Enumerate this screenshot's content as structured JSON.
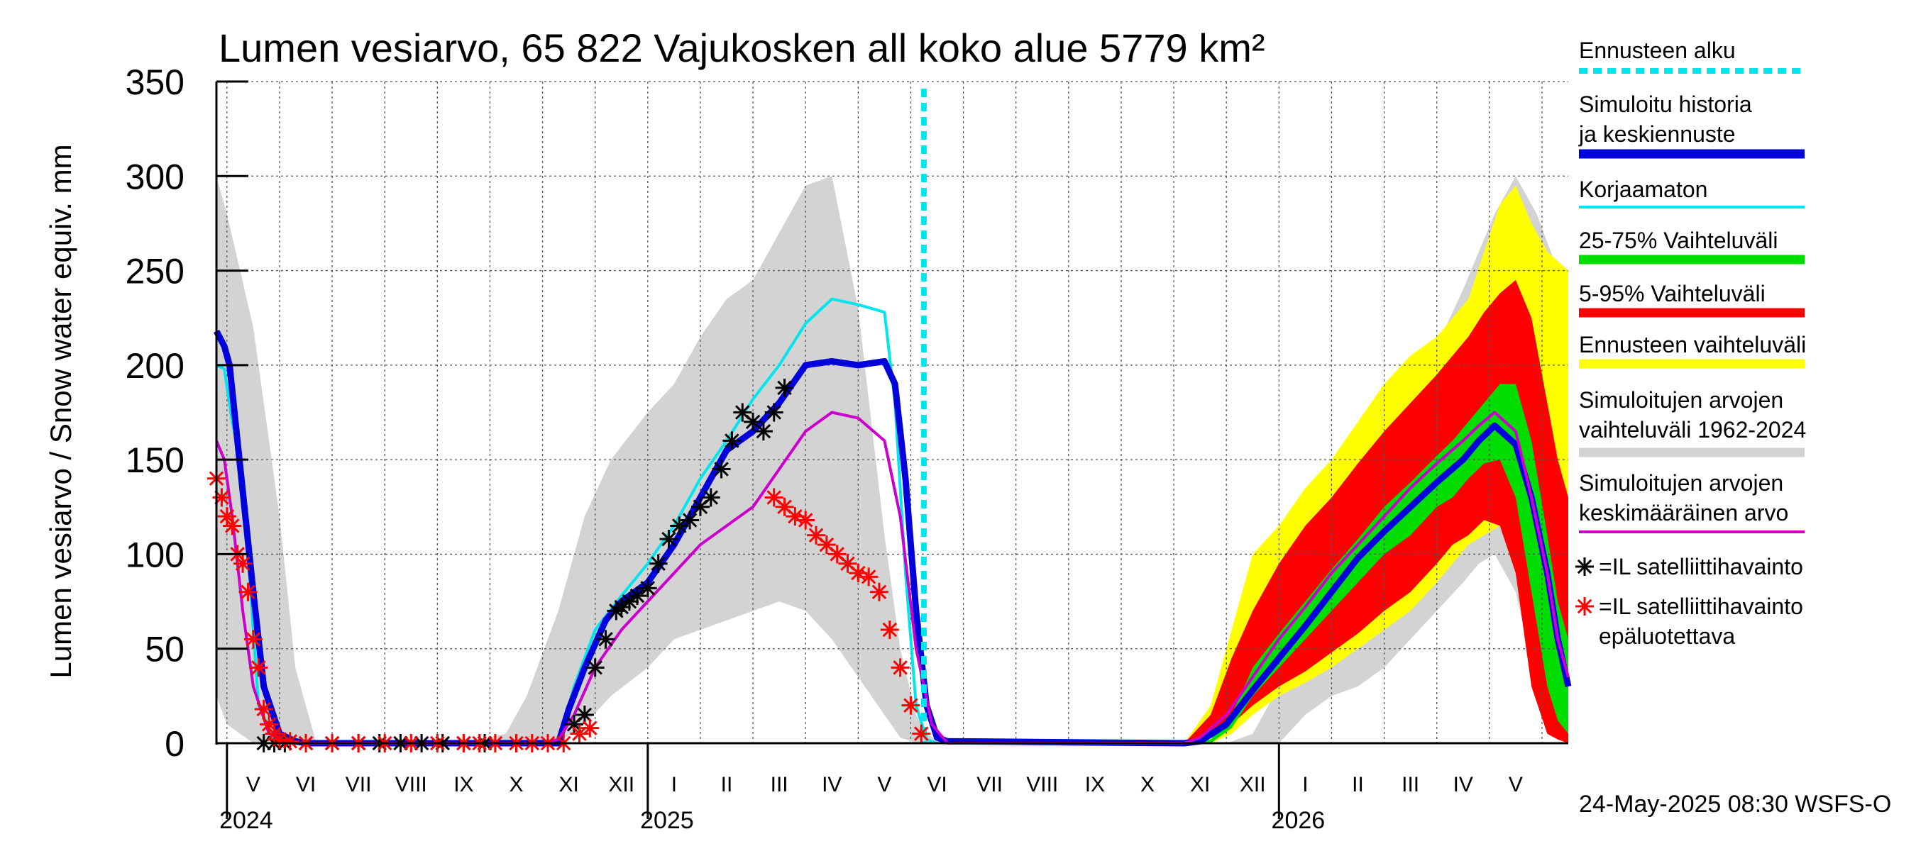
{
  "chart_data": {
    "type": "area",
    "title": "Lumen vesiarvo, 65 822 Vajukosken all koko alue 5779 km²",
    "ylabel": "Lumen vesiarvo / Snow water equiv.    mm",
    "ylim": [
      0,
      350
    ],
    "yticks": [
      0,
      50,
      100,
      150,
      200,
      250,
      300,
      350
    ],
    "grid": true,
    "x_unit": "months since 2024-05-01",
    "xlim": [
      -0.7,
      25.0
    ],
    "month_labels": [
      "V",
      "VI",
      "VII",
      "VIII",
      "IX",
      "X",
      "XI",
      "XII",
      "I",
      "II",
      "III",
      "IV",
      "V",
      "VI",
      "VII",
      "VIII",
      "IX",
      "X",
      "XI",
      "XII",
      "I",
      "II",
      "III",
      "IV",
      "V"
    ],
    "year_labels": [
      {
        "label": "2024",
        "x": 0
      },
      {
        "label": "2025",
        "x": 8
      },
      {
        "label": "2026",
        "x": 20
      }
    ],
    "forecast_start_x": 12.75,
    "footer": "24-May-2025 08:30 WSFS-O",
    "legend": {
      "placement": "right",
      "items": [
        {
          "label": "Ennusteen alku",
          "style": "dotted",
          "color": "#00e5ee"
        },
        {
          "label": "Simuloitu historia ja keskiennuste",
          "style": "thick",
          "color": "#0000dd"
        },
        {
          "label": "Korjaamaton",
          "style": "line",
          "color": "#00e5ee"
        },
        {
          "label": "25-75% Vaihteluväli",
          "style": "thick",
          "color": "#00dd00"
        },
        {
          "label": "5-95% Vaihteluväli",
          "style": "thick",
          "color": "#ff0000"
        },
        {
          "label": "Ennusteen vaihteluväli",
          "style": "thick",
          "color": "#ffff00"
        },
        {
          "label": "Simuloitujen arvojen vaihteluväli 1962-2024",
          "style": "thick",
          "color": "#d3d3d3"
        },
        {
          "label": "Simuloitujen arvojen keskimääräinen arvo",
          "style": "line",
          "color": "#cc00cc"
        },
        {
          "label": "=IL satelliittihavainto",
          "style": "star",
          "color": "#000000"
        },
        {
          "label": "=IL satelliittihavainto epäluotettava",
          "style": "star",
          "color": "#ff0000"
        }
      ]
    },
    "series": [
      {
        "name": "Simuloitujen arvojen vaihteluväli 1962-2024",
        "kind": "band",
        "color": "#d3d3d3",
        "x": [
          -0.7,
          -0.5,
          0,
          0.5,
          0.8,
          1.2,
          2,
          3,
          4,
          4.8,
          5.2,
          5.8,
          6.3,
          6.8,
          7.5,
          8,
          8.5,
          9,
          9.5,
          10,
          10.5,
          11,
          11.5,
          12,
          12.3,
          12.6,
          12.8,
          13.1,
          13.4,
          13.7,
          14,
          17,
          18.5,
          19,
          19.5,
          20,
          20.5,
          21,
          21.5,
          22,
          22.5,
          23,
          23.3,
          23.6,
          24,
          24.4,
          24.8,
          25.0
        ],
        "low": [
          25,
          10,
          0,
          0,
          0,
          0,
          0,
          0,
          0,
          0,
          0,
          0,
          10,
          25,
          40,
          55,
          60,
          65,
          70,
          75,
          70,
          55,
          35,
          15,
          3,
          0,
          0,
          0,
          0,
          0,
          0,
          0,
          0,
          0,
          0,
          15,
          25,
          30,
          40,
          55,
          70,
          85,
          95,
          100,
          80,
          30,
          5,
          0
        ],
        "high": [
          300,
          280,
          220,
          120,
          40,
          0,
          0,
          0,
          0,
          5,
          25,
          70,
          120,
          150,
          175,
          190,
          215,
          235,
          245,
          270,
          295,
          300,
          230,
          110,
          50,
          15,
          5,
          0,
          0,
          0,
          0,
          0,
          0,
          5,
          30,
          90,
          110,
          140,
          165,
          185,
          210,
          240,
          260,
          280,
          300,
          280,
          250,
          235
        ]
      },
      {
        "name": "Ennusteen vaihteluväli",
        "kind": "band",
        "color": "#ffff00",
        "x": [
          17.7,
          18.2,
          18.6,
          19,
          19.5,
          20,
          20.5,
          21,
          21.5,
          22,
          22.5,
          22.8,
          23.1,
          23.4,
          23.7,
          24,
          24.3,
          24.6,
          24.8,
          25.0
        ],
        "low": [
          0,
          0,
          5,
          15,
          25,
          32,
          40,
          50,
          60,
          70,
          85,
          95,
          105,
          110,
          115,
          100,
          40,
          10,
          2,
          0
        ],
        "high": [
          0,
          20,
          60,
          100,
          115,
          135,
          150,
          170,
          190,
          205,
          215,
          225,
          235,
          260,
          285,
          295,
          275,
          260,
          255,
          250
        ]
      },
      {
        "name": "5-95% Vaihteluväli",
        "kind": "band",
        "color": "#ff0000",
        "x": [
          17.7,
          18.2,
          18.6,
          19,
          19.5,
          20,
          20.5,
          21,
          21.5,
          22,
          22.5,
          22.8,
          23.1,
          23.4,
          23.7,
          24,
          24.3,
          24.6,
          24.8,
          25.0
        ],
        "low": [
          0,
          3,
          10,
          20,
          30,
          38,
          48,
          58,
          70,
          80,
          95,
          105,
          110,
          118,
          115,
          90,
          30,
          5,
          2,
          0
        ],
        "high": [
          0,
          15,
          45,
          70,
          95,
          115,
          130,
          148,
          165,
          180,
          195,
          205,
          215,
          228,
          238,
          245,
          225,
          180,
          150,
          130
        ]
      },
      {
        "name": "25-75% Vaihteluväli",
        "kind": "band",
        "color": "#00dd00",
        "x": [
          17.7,
          18.2,
          18.6,
          19,
          19.5,
          20,
          20.5,
          21,
          21.5,
          22,
          22.5,
          22.8,
          23.1,
          23.4,
          23.7,
          24,
          24.3,
          24.6,
          24.8,
          25.0
        ],
        "low": [
          0,
          0,
          8,
          25,
          40,
          55,
          70,
          85,
          100,
          110,
          125,
          130,
          140,
          148,
          150,
          130,
          80,
          30,
          12,
          5
        ],
        "high": [
          0,
          2,
          15,
          40,
          58,
          75,
          92,
          108,
          125,
          138,
          152,
          160,
          170,
          180,
          190,
          190,
          160,
          110,
          75,
          55
        ]
      },
      {
        "name": "Korjaamaton",
        "kind": "line",
        "color": "#00e5ee",
        "x": [
          -0.7,
          -0.55,
          -0.4,
          -0.25,
          -0.1,
          0.1,
          0.4,
          0.8,
          1,
          5.8,
          6.1,
          6.5,
          7,
          7.5,
          8,
          8.5,
          9,
          9.5,
          10,
          10.5,
          11,
          11.5,
          12,
          12.2,
          12.4,
          12.6,
          12.8,
          13
        ],
        "y": [
          200,
          198,
          170,
          150,
          100,
          20,
          2,
          0,
          0,
          0,
          30,
          60,
          78,
          95,
          115,
          140,
          160,
          182,
          200,
          222,
          235,
          232,
          228,
          180,
          90,
          20,
          2,
          0
        ]
      },
      {
        "name": "Simuloitu historia ja keskiennuste",
        "kind": "line",
        "color": "#0000dd",
        "x": [
          -0.7,
          -0.55,
          -0.45,
          -0.3,
          -0.15,
          0,
          0.2,
          0.5,
          0.8,
          1,
          5.8,
          6,
          6.3,
          6.7,
          7,
          7.5,
          8,
          8.5,
          9,
          9.5,
          10,
          10.5,
          11,
          11.5,
          12,
          12.2,
          12.4,
          12.6,
          12.8,
          13,
          13.2,
          17.7,
          18,
          18.5,
          19,
          19.5,
          20,
          20.5,
          21,
          21.5,
          22,
          22.5,
          23,
          23.3,
          23.6,
          24,
          24.3,
          24.6,
          24.8,
          25.0
        ],
        "y": [
          218,
          210,
          200,
          160,
          120,
          80,
          30,
          5,
          1,
          0,
          0,
          18,
          40,
          65,
          75,
          85,
          105,
          130,
          155,
          165,
          180,
          200,
          202,
          200,
          202,
          190,
          140,
          70,
          20,
          3,
          1,
          0,
          1,
          10,
          28,
          45,
          62,
          80,
          98,
          112,
          125,
          138,
          150,
          160,
          168,
          158,
          130,
          90,
          55,
          30
        ]
      },
      {
        "name": "Simuloitujen arvojen keskimääräinen arvo",
        "kind": "line",
        "color": "#cc00cc",
        "x": [
          -0.7,
          -0.55,
          -0.4,
          -0.2,
          0,
          0.3,
          0.6,
          1,
          5.5,
          5.8,
          6.1,
          6.5,
          7,
          7.5,
          8,
          8.5,
          9,
          9.5,
          10,
          10.5,
          11,
          11.5,
          12,
          12.3,
          12.6,
          12.9,
          13.2,
          17.7,
          18,
          18.5,
          19,
          19.5,
          20,
          20.5,
          21,
          21.5,
          22,
          22.5,
          23,
          23.3,
          23.6,
          24,
          24.3,
          24.6,
          24.8,
          25.0
        ],
        "y": [
          160,
          150,
          120,
          70,
          30,
          5,
          1,
          0,
          0,
          2,
          15,
          40,
          60,
          75,
          90,
          105,
          115,
          125,
          145,
          165,
          175,
          172,
          160,
          120,
          50,
          10,
          0,
          0,
          3,
          15,
          35,
          55,
          72,
          90,
          105,
          120,
          135,
          148,
          160,
          168,
          175,
          165,
          130,
          90,
          55,
          35
        ]
      },
      {
        "name": "=IL satelliittihavainto",
        "kind": "scatter",
        "color": "#000000",
        "marker": "star",
        "x": [
          0.2,
          0.4,
          0.6,
          1.0,
          1.5,
          2.0,
          2.4,
          2.8,
          3.2,
          3.6,
          4.0,
          4.4,
          6.1,
          6.3,
          6.5,
          6.7,
          6.9,
          7.0,
          7.15,
          7.3,
          7.5,
          7.7,
          7.9,
          8.1,
          8.3,
          8.5,
          8.7,
          8.9,
          9.1,
          9.3,
          9.5,
          9.7,
          9.9,
          10.1
        ],
        "y": [
          0,
          0,
          0,
          0,
          0,
          0,
          0,
          0,
          0,
          0,
          0,
          0,
          10,
          15,
          40,
          55,
          70,
          72,
          75,
          78,
          82,
          95,
          108,
          115,
          118,
          125,
          130,
          145,
          160,
          175,
          170,
          165,
          175,
          188
        ]
      },
      {
        "name": "=IL satelliittihavainto epäluotettava",
        "kind": "scatter",
        "color": "#ff0000",
        "marker": "star",
        "x": [
          -0.7,
          -0.6,
          -0.5,
          -0.4,
          -0.3,
          -0.2,
          -0.1,
          0,
          0.1,
          0.2,
          0.3,
          0.4,
          0.5,
          0.7,
          1,
          1.5,
          2,
          2.5,
          3,
          3.5,
          4,
          4.3,
          4.6,
          5,
          5.3,
          5.6,
          5.9,
          6.2,
          6.4,
          9.9,
          10.1,
          10.3,
          10.5,
          10.7,
          10.9,
          11.1,
          11.3,
          11.5,
          11.7,
          11.9,
          12.1,
          12.3,
          12.5,
          12.7
        ],
        "y": [
          140,
          130,
          120,
          115,
          100,
          95,
          80,
          55,
          40,
          18,
          10,
          5,
          2,
          1,
          0,
          0,
          0,
          0,
          0,
          0,
          0,
          0,
          0,
          0,
          0,
          0,
          0,
          5,
          8,
          130,
          125,
          120,
          118,
          110,
          105,
          100,
          95,
          90,
          88,
          80,
          60,
          40,
          20,
          5
        ]
      }
    ]
  }
}
